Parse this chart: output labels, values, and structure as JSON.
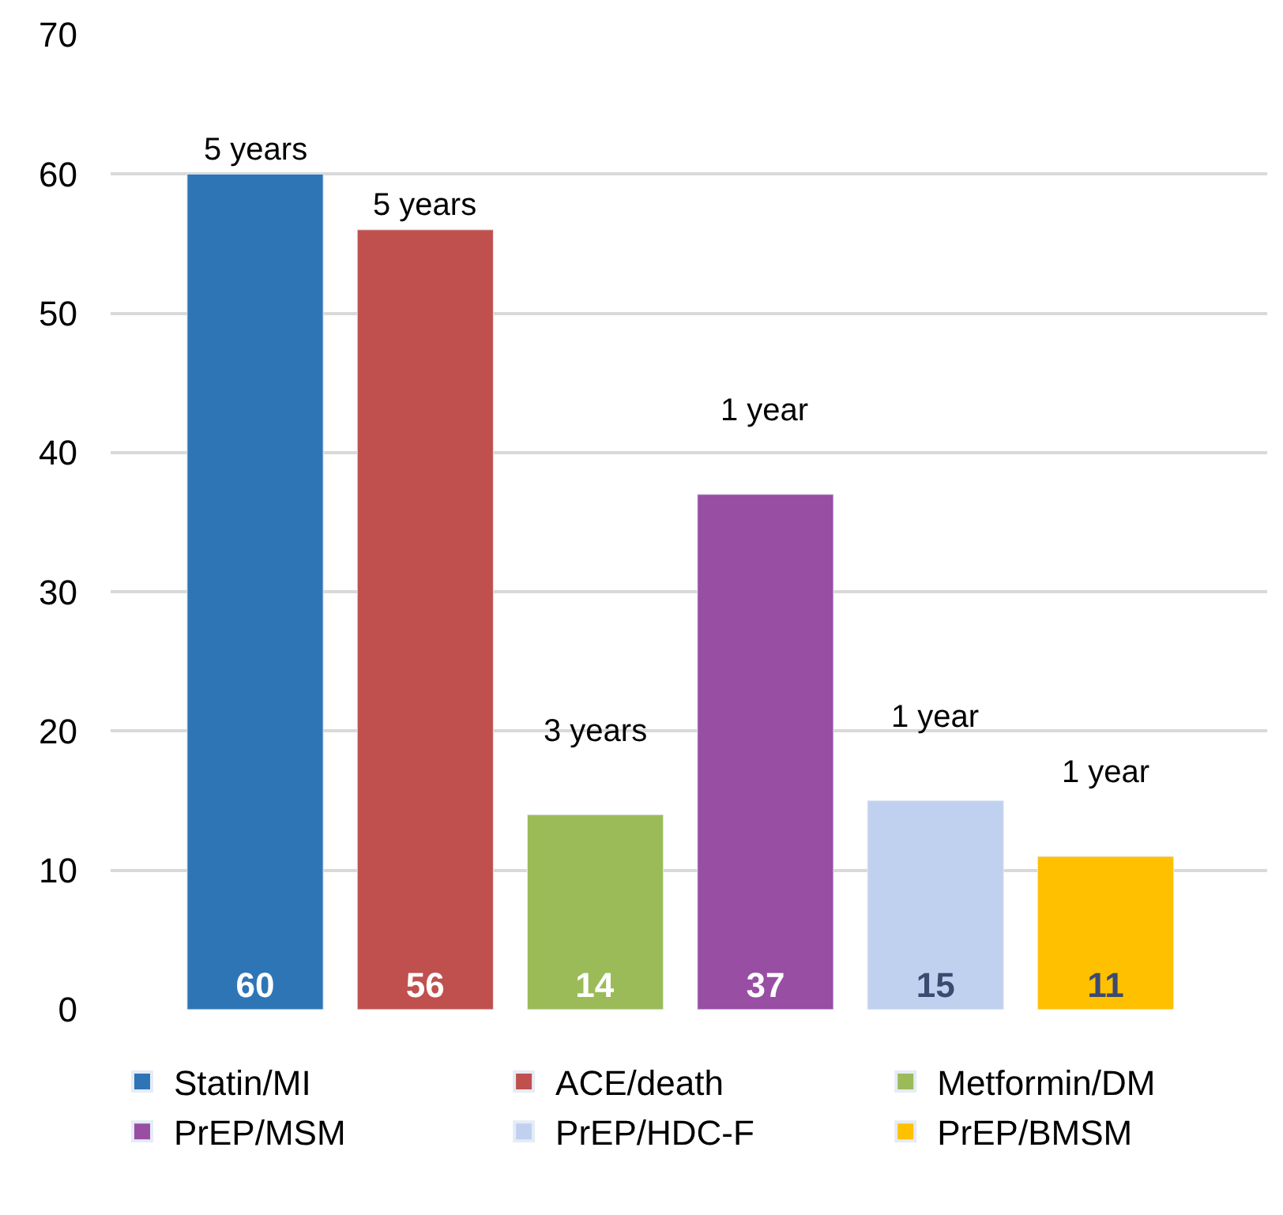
{
  "chart_data": {
    "type": "bar",
    "categories": [
      null,
      null,
      null,
      null,
      null,
      null
    ],
    "series": [
      {
        "name": "Statin/MI",
        "color": "#2e75b6",
        "values": [
          60,
          null,
          null,
          null,
          null,
          null
        ]
      },
      {
        "name": "ACE/death",
        "color": "#c0504d",
        "values": [
          null,
          56,
          null,
          null,
          null,
          null
        ]
      },
      {
        "name": "Metformin/DM",
        "color": "#9bbb59",
        "values": [
          null,
          null,
          14,
          null,
          null,
          null
        ]
      },
      {
        "name": "PrEP/MSM",
        "color": "#984ea3",
        "values": [
          null,
          null,
          null,
          37,
          null,
          null
        ]
      },
      {
        "name": "PrEP/HDC-F",
        "color": "#c0d1f0",
        "values": [
          null,
          null,
          null,
          null,
          15,
          null
        ]
      },
      {
        "name": "PrEP/BMSM",
        "color": "#ffc000",
        "values": [
          null,
          null,
          null,
          null,
          null,
          11
        ]
      }
    ],
    "annotations": [
      {
        "text": "5 years",
        "y": 60
      },
      {
        "text": "5 years",
        "y": 56
      },
      {
        "text": "3 years",
        "y": 14
      },
      {
        "text": "1 year",
        "y": 37
      },
      {
        "text": "1 year",
        "y": 15
      },
      {
        "text": "1 year",
        "y": 11
      }
    ],
    "ylim": [
      0,
      70
    ],
    "yticks": [
      0,
      10,
      20,
      30,
      40,
      50,
      60,
      70
    ],
    "grid": "y",
    "legend": "bottom",
    "data_labels": true
  }
}
